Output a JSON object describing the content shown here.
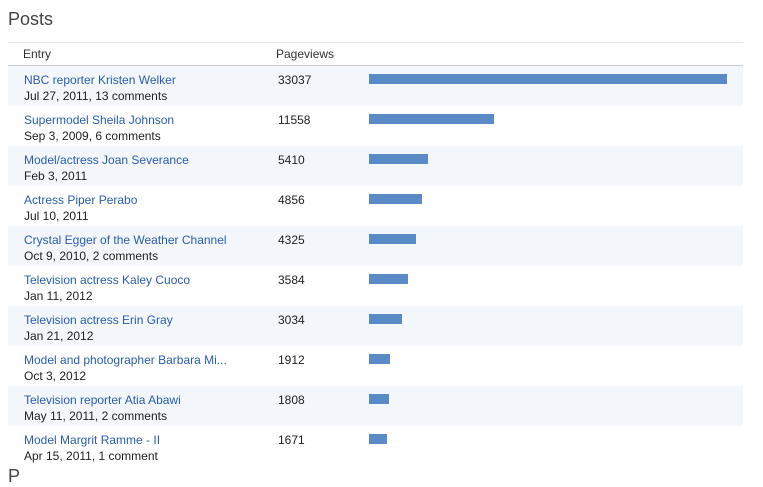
{
  "section": {
    "title": "Posts",
    "next_section_title": "P"
  },
  "table": {
    "columns": {
      "entry": "Entry",
      "pageviews": "Pageviews"
    },
    "max_pageviews": 33037,
    "rows": [
      {
        "title": "NBC reporter Kristen Welker",
        "meta": "Jul 27, 2011, 13 comments",
        "pageviews": "33037"
      },
      {
        "title": "Supermodel Sheila Johnson",
        "meta": "Sep 3, 2009, 6 comments",
        "pageviews": "11558"
      },
      {
        "title": "Model/actress Joan Severance",
        "meta": "Feb 3, 2011",
        "pageviews": "5410"
      },
      {
        "title": "Actress Piper Perabo",
        "meta": "Jul 10, 2011",
        "pageviews": "4856"
      },
      {
        "title": "Crystal Egger of the Weather Channel",
        "meta": "Oct 9, 2010, 2 comments",
        "pageviews": "4325"
      },
      {
        "title": "Television actress Kaley Cuoco",
        "meta": "Jan 11, 2012",
        "pageviews": "3584"
      },
      {
        "title": "Television actress Erin Gray",
        "meta": "Jan 21, 2012",
        "pageviews": "3034"
      },
      {
        "title": "Model and photographer Barbara Mi...",
        "meta": "Oct 3, 2012",
        "pageviews": "1912"
      },
      {
        "title": "Television reporter Atia Abawi",
        "meta": "May 11, 2011, 2 comments",
        "pageviews": "1808"
      },
      {
        "title": "Model Margrit Ramme - II",
        "meta": "Apr 15, 2011, 1 comment",
        "pageviews": "1671"
      }
    ]
  },
  "colors": {
    "link": "#2a5db0",
    "bar": "#5b8bc6",
    "row_alt": "#f3f6fb"
  }
}
